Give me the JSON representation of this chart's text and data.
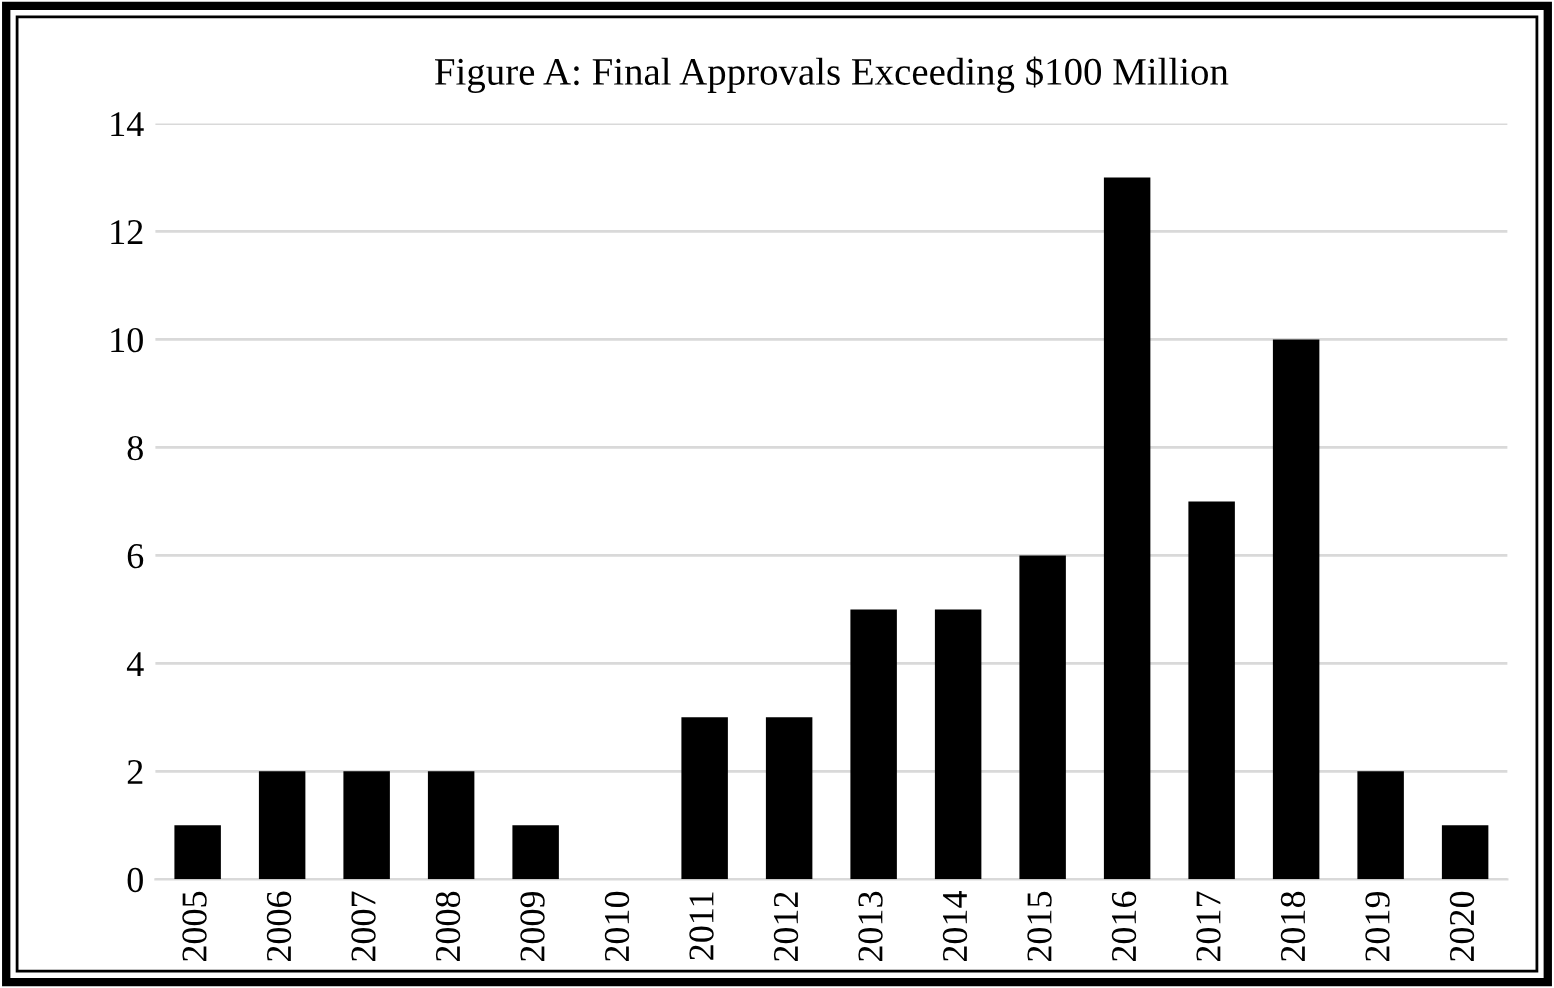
{
  "chart_data": {
    "type": "bar",
    "title": "Figure A: Final Approvals Exceeding $100 Million",
    "categories": [
      "2005",
      "2006",
      "2007",
      "2008",
      "2009",
      "2010",
      "2011",
      "2012",
      "2013",
      "2014",
      "2015",
      "2016",
      "2017",
      "2018",
      "2019",
      "2020"
    ],
    "values": [
      1,
      2,
      2,
      2,
      1,
      0,
      3,
      3,
      5,
      5,
      6,
      13,
      7,
      10,
      2,
      1
    ],
    "color": "#000000",
    "ylim": [
      0,
      14
    ],
    "yticks": [
      0,
      2,
      4,
      6,
      8,
      10,
      12,
      14
    ],
    "grid": "y",
    "legend": false
  }
}
